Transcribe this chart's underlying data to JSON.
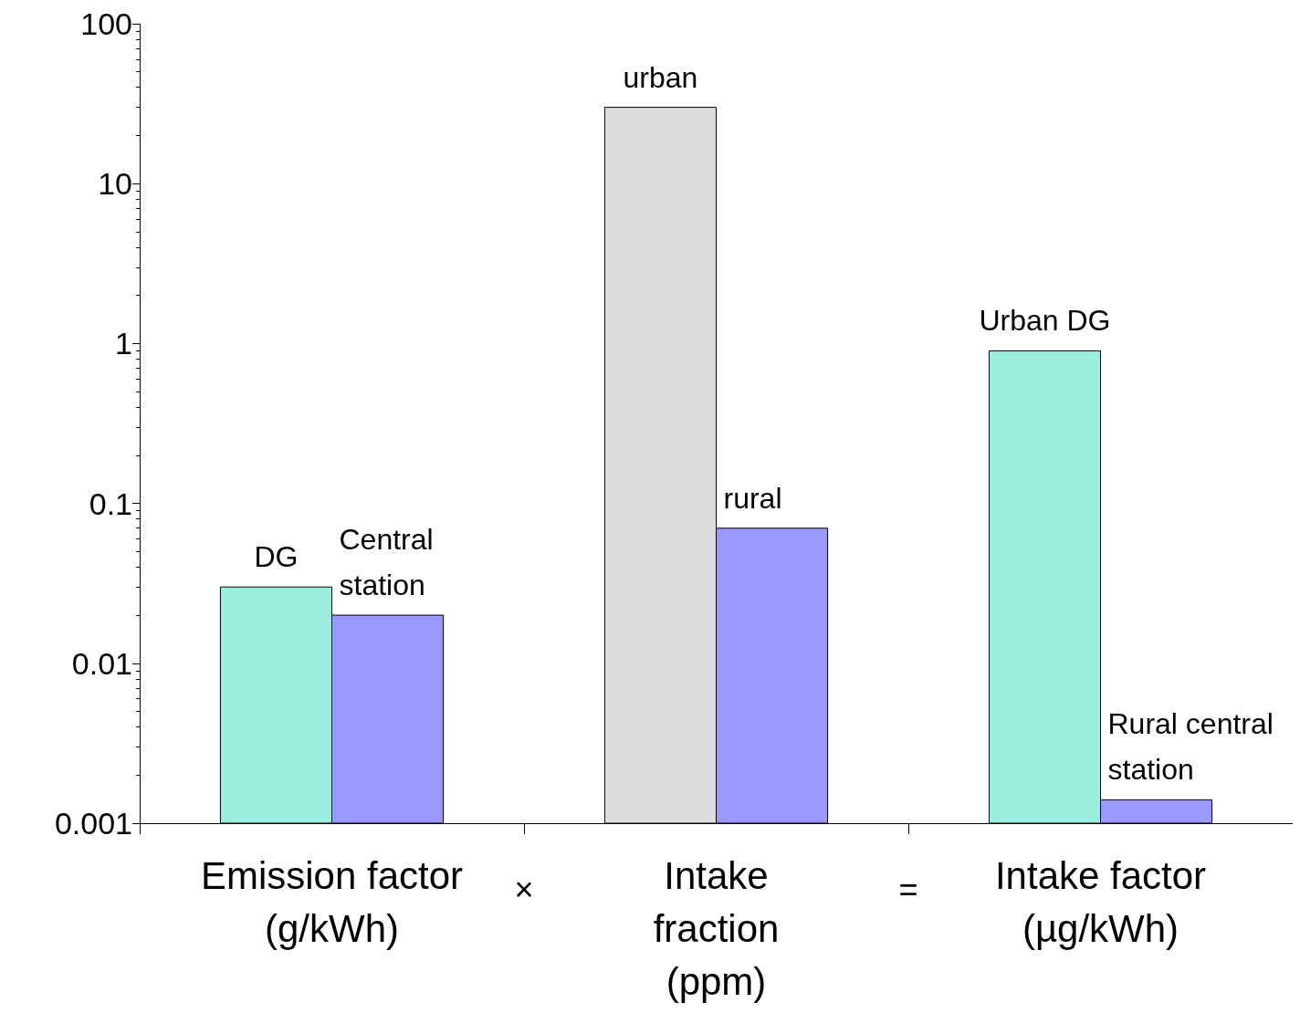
{
  "chart_data": {
    "type": "bar",
    "categories": [
      "Emission factor\n(g/kWh)",
      "Intake\nfraction\n(ppm)",
      "Intake factor\n(µg/kWh)"
    ],
    "series": [
      {
        "colors": [
          "#99eedd",
          "#dddddd",
          "#99eedd"
        ],
        "values": [
          0.03,
          30,
          0.9
        ],
        "value_labels": [
          "DG",
          "urban",
          "Urban DG"
        ]
      },
      {
        "color": "#9999ff",
        "values": [
          0.02,
          0.07,
          0.0014
        ],
        "value_labels": [
          "Central\nstation",
          "rural",
          "Rural central\nstation"
        ]
      }
    ],
    "log": true,
    "ylim": [
      0.001,
      100
    ],
    "yticks": [
      0.001,
      0.01,
      0.1,
      1,
      10,
      100
    ],
    "grid": false,
    "annotations": [
      "×",
      "="
    ]
  }
}
